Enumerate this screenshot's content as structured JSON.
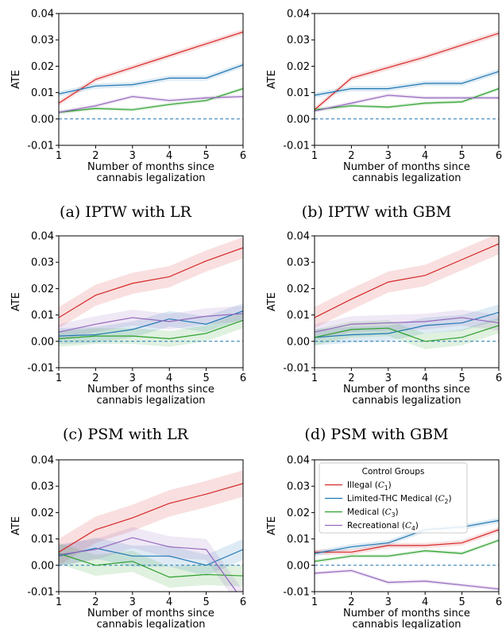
{
  "figure": {
    "captions": [
      "(a) IPTW with LR",
      "(b) IPTW with GBM",
      "(c) PSM with LR",
      "(d) PSM with GBM"
    ]
  },
  "colors": {
    "illegal": "#d62728",
    "limited": "#1f77b4",
    "medical": "#2ca02c",
    "recreational": "#9467bd",
    "zero_line": "#1f77b4"
  },
  "chart_data": [
    {
      "type": "line",
      "caption": "(a) IPTW with LR",
      "xlabel": "Number of months since\ncannabis legalization",
      "ylabel": "ATE",
      "xlim": [
        1,
        6
      ],
      "ylim": [
        -0.01,
        0.04
      ],
      "x": [
        1,
        2,
        3,
        4,
        5,
        6
      ],
      "yticks": [
        "-0.01",
        "0.00",
        "0.01",
        "0.02",
        "0.03",
        "0.04"
      ],
      "reference_line": 0,
      "series": [
        {
          "key": "illegal",
          "values": [
            0.006,
            0.015,
            0.0195,
            0.024,
            0.0285,
            0.033
          ],
          "band": 0.001
        },
        {
          "key": "limited",
          "values": [
            0.0095,
            0.0125,
            0.013,
            0.0155,
            0.0155,
            0.0205
          ],
          "band": 0.001
        },
        {
          "key": "medical",
          "values": [
            0.0025,
            0.004,
            0.0035,
            0.0055,
            0.007,
            0.0115
          ],
          "band": 0.0007
        },
        {
          "key": "recreational",
          "values": [
            0.0025,
            0.005,
            0.0085,
            0.007,
            0.008,
            0.0085
          ],
          "band": 0.0007
        }
      ]
    },
    {
      "type": "line",
      "caption": "(b) IPTW with GBM",
      "xlabel": "Number of months since\ncannabis legalization",
      "ylabel": "ATE",
      "xlim": [
        1,
        6
      ],
      "ylim": [
        -0.01,
        0.04
      ],
      "x": [
        1,
        2,
        3,
        4,
        5,
        6
      ],
      "yticks": [
        "-0.01",
        "0.00",
        "0.01",
        "0.02",
        "0.03",
        "0.04"
      ],
      "reference_line": 0,
      "series": [
        {
          "key": "illegal",
          "values": [
            0.0035,
            0.0155,
            0.0195,
            0.0235,
            0.028,
            0.0325
          ],
          "band": 0.001
        },
        {
          "key": "limited",
          "values": [
            0.009,
            0.0115,
            0.0115,
            0.0135,
            0.0135,
            0.018
          ],
          "band": 0.001
        },
        {
          "key": "medical",
          "values": [
            0.0035,
            0.005,
            0.0045,
            0.006,
            0.0065,
            0.0115
          ],
          "band": 0.0007
        },
        {
          "key": "recreational",
          "values": [
            0.003,
            0.006,
            0.009,
            0.008,
            0.008,
            0.008
          ],
          "band": 0.0007
        }
      ]
    },
    {
      "type": "line",
      "caption": "(c) PSM with LR",
      "xlabel": "Number of months since\ncannabis legalization",
      "ylabel": "ATE",
      "xlim": [
        1,
        6
      ],
      "ylim": [
        -0.01,
        0.04
      ],
      "x": [
        1,
        2,
        3,
        4,
        5,
        6
      ],
      "yticks": [
        "-0.01",
        "0.00",
        "0.01",
        "0.02",
        "0.03",
        "0.04"
      ],
      "reference_line": 0,
      "series": [
        {
          "key": "illegal",
          "values": [
            0.009,
            0.0175,
            0.022,
            0.0245,
            0.0305,
            0.0355
          ],
          "band": 0.004
        },
        {
          "key": "limited",
          "values": [
            0.002,
            0.0025,
            0.0045,
            0.0085,
            0.0065,
            0.0115
          ],
          "band": 0.003
        },
        {
          "key": "medical",
          "values": [
            0.001,
            0.002,
            0.002,
            0.001,
            0.003,
            0.008
          ],
          "band": 0.003
        },
        {
          "key": "recreational",
          "values": [
            0.0035,
            0.0065,
            0.009,
            0.0075,
            0.0095,
            0.0105
          ],
          "band": 0.003
        }
      ]
    },
    {
      "type": "line",
      "caption": "(d) PSM with GBM",
      "xlabel": "Number of months since\ncannabis legalization",
      "ylabel": "ATE",
      "xlim": [
        1,
        6
      ],
      "ylim": [
        -0.01,
        0.04
      ],
      "x": [
        1,
        2,
        3,
        4,
        5,
        6
      ],
      "yticks": [
        "-0.01",
        "0.00",
        "0.01",
        "0.02",
        "0.03",
        "0.04"
      ],
      "reference_line": 0,
      "series": [
        {
          "key": "illegal",
          "values": [
            0.009,
            0.016,
            0.0225,
            0.025,
            0.031,
            0.037
          ],
          "band": 0.004
        },
        {
          "key": "limited",
          "values": [
            0.0015,
            0.0025,
            0.003,
            0.006,
            0.007,
            0.011
          ],
          "band": 0.003
        },
        {
          "key": "medical",
          "values": [
            0.0015,
            0.0045,
            0.005,
            0.0,
            0.0015,
            0.006
          ],
          "band": 0.003
        },
        {
          "key": "recreational",
          "values": [
            0.0035,
            0.0065,
            0.007,
            0.0075,
            0.009,
            0.007
          ],
          "band": 0.003
        }
      ]
    },
    {
      "type": "line",
      "caption": "",
      "xlabel": "Number of months since\ncannabis legalization",
      "ylabel": "ATE",
      "xlim": [
        1,
        6
      ],
      "ylim": [
        -0.01,
        0.04
      ],
      "x": [
        1,
        2,
        3,
        4,
        5,
        6
      ],
      "yticks": [
        "-0.01",
        "0.00",
        "0.01",
        "0.02",
        "0.03",
        "0.04"
      ],
      "reference_line": 0,
      "series": [
        {
          "key": "illegal",
          "values": [
            0.005,
            0.0135,
            0.018,
            0.0235,
            0.027,
            0.031
          ],
          "band": 0.005
        },
        {
          "key": "limited",
          "values": [
            0.0035,
            0.0065,
            0.0035,
            0.0035,
            0.0,
            0.006
          ],
          "band": 0.004
        },
        {
          "key": "medical",
          "values": [
            0.0045,
            0.0,
            0.0015,
            -0.0045,
            -0.0035,
            -0.004
          ],
          "band": 0.004
        },
        {
          "key": "recreational",
          "values": [
            0.004,
            0.006,
            0.0105,
            0.007,
            0.006,
            -0.0135
          ],
          "band": 0.004
        }
      ]
    },
    {
      "type": "line",
      "caption": "",
      "xlabel": "Number of months since\ncannabis legalization",
      "ylabel": "ATE",
      "xlim": [
        1,
        6
      ],
      "ylim": [
        -0.01,
        0.04
      ],
      "x": [
        1,
        2,
        3,
        4,
        5,
        6
      ],
      "yticks": [
        "-0.01",
        "0.00",
        "0.01",
        "0.02",
        "0.03",
        "0.04"
      ],
      "reference_line": 0,
      "legend": {
        "title": "Control Groups",
        "placement": "upper-left",
        "entries": [
          {
            "key": "illegal",
            "label": "Illegal (",
            "sub": "1"
          },
          {
            "key": "limited",
            "label": "Limited-THC Medical (",
            "sub": "2"
          },
          {
            "key": "medical",
            "label": "Medical (",
            "sub": "3"
          },
          {
            "key": "recreational",
            "label": "Recreational (",
            "sub": "4"
          }
        ]
      },
      "series": [
        {
          "key": "illegal",
          "values": [
            0.005,
            0.005,
            0.0075,
            0.0075,
            0.0085,
            0.0135
          ],
          "band": 0.001
        },
        {
          "key": "limited",
          "values": [
            0.0045,
            0.007,
            0.0085,
            0.0135,
            0.0145,
            0.017
          ],
          "band": 0.001
        },
        {
          "key": "medical",
          "values": [
            0.0015,
            0.0035,
            0.0035,
            0.0055,
            0.0045,
            0.0095
          ],
          "band": 0.0007
        },
        {
          "key": "recreational",
          "values": [
            -0.003,
            -0.002,
            -0.0065,
            -0.006,
            -0.0075,
            -0.009
          ],
          "band": 0.0007
        }
      ]
    }
  ]
}
